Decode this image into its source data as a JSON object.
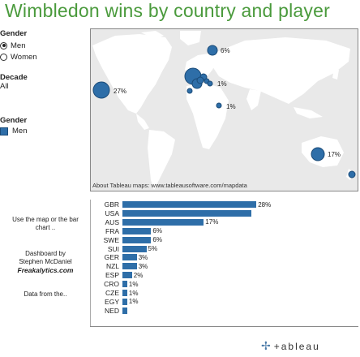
{
  "title": "Wimbledon wins by country and player",
  "sidebar": {
    "gender_label": "Gender",
    "gender_options": [
      {
        "label": "Men",
        "selected": true
      },
      {
        "label": "Women",
        "selected": false
      }
    ],
    "decade_label": "Decade",
    "decade_value": "All",
    "legend_label": "Gender",
    "legend_item": "Men",
    "legend_color": "#2e6ea8"
  },
  "map": {
    "attribution": "About Tableau maps: www.tableausoftware.com/mapdata",
    "labels": [
      "6%",
      "27%",
      "1%",
      "1%",
      "17%"
    ]
  },
  "notes": {
    "use_map": "Use the map or the bar chart ..",
    "dashboard_by": "Dashboard by",
    "author": "Stephen McDaniel",
    "site": "Freakalytics.com",
    "data_from": "Data from the.."
  },
  "chart_data": {
    "type": "bar",
    "orientation": "horizontal",
    "categories": [
      "GBR",
      "USA",
      "AUS",
      "FRA",
      "SWE",
      "SUI",
      "GER",
      "NZL",
      "ESP",
      "CRO",
      "CZE",
      "EGY",
      "NED"
    ],
    "values": [
      28,
      27,
      17,
      6,
      6,
      5,
      3,
      3,
      2,
      1,
      1,
      1,
      1
    ],
    "labels": [
      "28%",
      "",
      "17%",
      "6%",
      "6%",
      "5%",
      "3%",
      "3%",
      "2%",
      "1%",
      "1%",
      "1%",
      ""
    ],
    "color": "#2e6ea8"
  },
  "logo": "+ableau"
}
